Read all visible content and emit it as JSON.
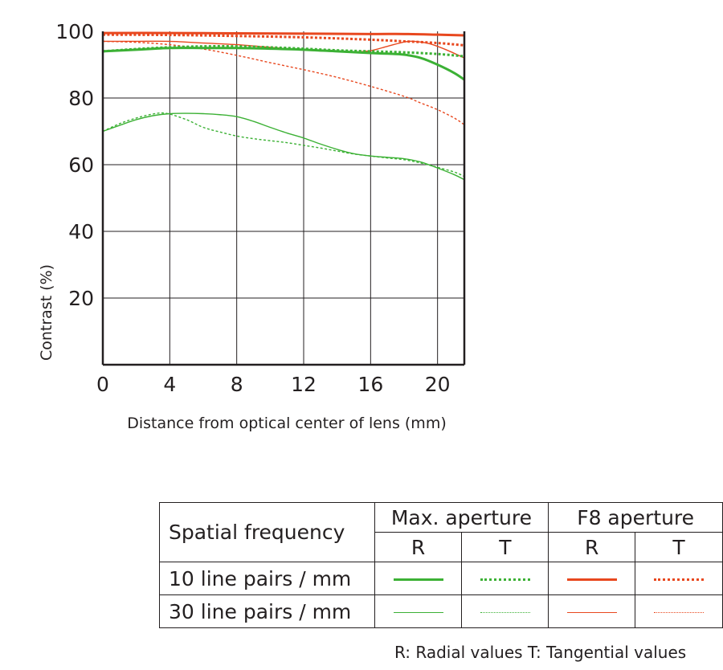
{
  "chart_data": {
    "type": "line",
    "ylabel": "Contrast (%)",
    "xlabel": "Distance from optical center of lens (mm)",
    "xlim": [
      0,
      21.6
    ],
    "ylim": [
      0,
      100
    ],
    "x_ticks": [
      0,
      4,
      8,
      12,
      16,
      20
    ],
    "y_ticks": [
      20,
      40,
      60,
      80,
      100
    ],
    "grid": true,
    "series": [
      {
        "key": "max_10_R",
        "color": "#3cb135",
        "style": "solid",
        "weight": "bold",
        "x": [
          0,
          2,
          4,
          6,
          8,
          10,
          12,
          14,
          16,
          17,
          18,
          19,
          20,
          21,
          21.6
        ],
        "y": [
          94,
          94.5,
          95,
          95,
          95,
          94.8,
          94.5,
          94,
          93.5,
          93.3,
          93,
          92,
          90,
          87.5,
          85.5
        ]
      },
      {
        "key": "max_10_T",
        "color": "#3cb135",
        "style": "dotted",
        "weight": "bold",
        "x": [
          0,
          2,
          4,
          6,
          8,
          10,
          12,
          14,
          16,
          18,
          20,
          21.6
        ],
        "y": [
          94,
          94.7,
          95.2,
          95.5,
          95.5,
          95.2,
          94.8,
          94.3,
          94,
          93.7,
          93.2,
          92.5
        ]
      },
      {
        "key": "f8_10_R",
        "color": "#e8481f",
        "style": "solid",
        "weight": "bold",
        "x": [
          0,
          4,
          8,
          12,
          16,
          18,
          20,
          21.6
        ],
        "y": [
          99.5,
          99.5,
          99.4,
          99.3,
          99.2,
          99.2,
          99,
          98.8
        ]
      },
      {
        "key": "f8_10_T",
        "color": "#e8481f",
        "style": "dotted",
        "weight": "bold",
        "x": [
          0,
          4,
          8,
          12,
          16,
          18,
          20,
          21.6
        ],
        "y": [
          99,
          98.9,
          98.6,
          98.2,
          97.5,
          97,
          96.5,
          95.8
        ]
      },
      {
        "key": "max_30_R",
        "color": "#3cb135",
        "style": "solid",
        "weight": "thin",
        "x": [
          0,
          1,
          2,
          3,
          4,
          5,
          6,
          7,
          8,
          9,
          10,
          11,
          12,
          13,
          14,
          15,
          16,
          17,
          18,
          19,
          20,
          21,
          21.6
        ],
        "y": [
          70,
          71.8,
          73.5,
          74.7,
          75.3,
          75.4,
          75.3,
          75,
          74.4,
          73,
          71.2,
          69.5,
          68,
          66.2,
          64.6,
          63.3,
          62.6,
          62.2,
          61.8,
          60.8,
          59,
          57,
          55.5
        ]
      },
      {
        "key": "max_30_T",
        "color": "#3cb135",
        "style": "dotted",
        "weight": "thin",
        "x": [
          0,
          1,
          2,
          3,
          3.8,
          5,
          6,
          7,
          8,
          9,
          10,
          11,
          12,
          13,
          14,
          15,
          16,
          17,
          18,
          19,
          20,
          21,
          21.6
        ],
        "y": [
          70,
          72.3,
          74,
          75.2,
          75.4,
          73.5,
          71.2,
          69.8,
          68.6,
          67.8,
          67.2,
          66.6,
          65.8,
          65,
          64.1,
          63.2,
          62.6,
          62,
          61.5,
          60.5,
          59.2,
          57.8,
          56.5
        ]
      },
      {
        "key": "f8_30_R",
        "color": "#e8481f",
        "style": "solid",
        "weight": "thin",
        "x": [
          0,
          2,
          4,
          6,
          8,
          10,
          12,
          14,
          15,
          16,
          17,
          18,
          18.6,
          19.5,
          20.5,
          21.6
        ],
        "y": [
          97,
          97,
          97,
          96.5,
          96,
          95.2,
          94.4,
          93.9,
          93.8,
          94.2,
          95.5,
          96.8,
          97,
          96.3,
          94.5,
          92
        ]
      },
      {
        "key": "f8_30_T",
        "color": "#e8481f",
        "style": "dotted",
        "weight": "thin",
        "x": [
          0,
          2,
          4,
          6,
          8,
          10,
          12,
          14,
          16,
          18,
          19,
          20,
          21,
          21.6
        ],
        "y": [
          97,
          96.7,
          96,
          94.7,
          92.8,
          90.6,
          88.5,
          86.2,
          83.5,
          80.5,
          78.5,
          76.5,
          74,
          72
        ]
      }
    ]
  },
  "legend": {
    "header_label": "Spatial frequency",
    "groups": [
      "Max. aperture",
      "F8 aperture"
    ],
    "subheaders": [
      "R",
      "T",
      "R",
      "T"
    ],
    "rows": [
      {
        "label": "10 line pairs / mm",
        "series": [
          "max_10_R",
          "max_10_T",
          "f8_10_R",
          "f8_10_T"
        ]
      },
      {
        "label": "30 line pairs / mm",
        "series": [
          "max_30_R",
          "max_30_T",
          "f8_30_R",
          "f8_30_T"
        ]
      }
    ],
    "footnote": "R: Radial values  T: Tangential values"
  }
}
